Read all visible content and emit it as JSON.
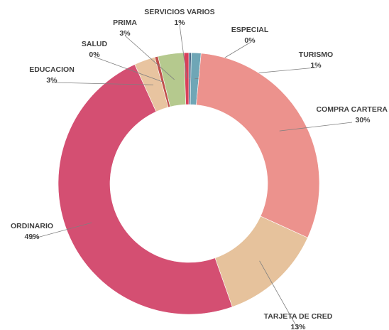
{
  "chart_data": {
    "type": "donut",
    "categories": [
      "ESPECIAL",
      "TURISMO",
      "COMPRA CARTERA",
      "TARJETA DE CRED",
      "ORDINARIO",
      "EDUCACION",
      "SALUD",
      "PRIMA",
      "SERVICIOS VARIOS"
    ],
    "values": [
      0.3,
      1.2,
      30.3,
      12.8,
      48.6,
      2.6,
      0.4,
      3.2,
      0.6
    ],
    "value_labels": [
      "0%",
      "1%",
      "30%",
      "13%",
      "49%",
      "3%",
      "0%",
      "3%",
      "1%"
    ],
    "colors": [
      "#4f6b8a",
      "#6fa6b6",
      "#ec928d",
      "#e6c29c",
      "#d44f72",
      "#e8c4a0",
      "#c0504d",
      "#b5c98e",
      "#d9405a"
    ]
  }
}
